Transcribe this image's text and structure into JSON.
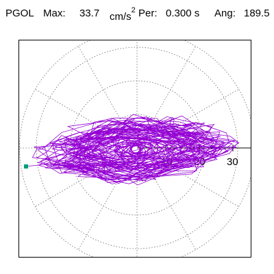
{
  "header": {
    "station": "PGOL",
    "max_label": "Max:",
    "max_value": "33.7",
    "max_unit_base": "cm/s",
    "max_unit_exp": "2",
    "per_label": "Per:",
    "per_value": "0.300 s",
    "ang_label": "Ang:",
    "ang_value": "189.5"
  },
  "polar_plot": {
    "ring_labels": [
      "10",
      "20",
      "30"
    ],
    "ring_values": [
      10,
      20,
      30
    ],
    "max_amplitude": 33.7,
    "angle_deg": 189.5,
    "grid": true,
    "grid_style": "dotted",
    "radial_spokes_deg": [
      0,
      30,
      60,
      90,
      120,
      150,
      180,
      210,
      240,
      270,
      300,
      330
    ],
    "trace_color": "#9400d3",
    "marker_color": "#00a07a",
    "axis_color": "#000000",
    "grid_color": "#666666"
  }
}
